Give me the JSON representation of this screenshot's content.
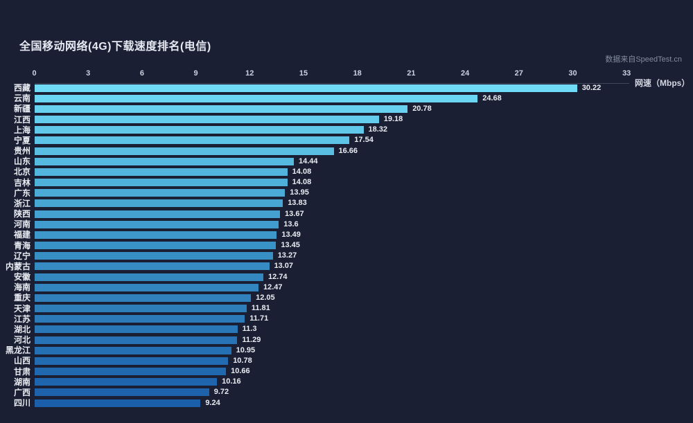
{
  "title": "全国移动网络(4G)下载速度排名(电信)",
  "credit": "数据来自SpeedTest.cn",
  "chart_data": {
    "type": "bar",
    "orientation": "horizontal",
    "title": "全国移动网络(4G)下载速度排名(电信)",
    "source_note": "数据来自SpeedTest.cn",
    "axis_label": "网速（Mbps）",
    "xlabel": "网速（Mbps）",
    "ylabel": "",
    "xlim": [
      0,
      33
    ],
    "x_ticks": [
      0,
      3,
      6,
      9,
      12,
      15,
      18,
      21,
      24,
      27,
      30,
      33
    ],
    "grid": false,
    "legend": false,
    "categories": [
      "西藏",
      "云南",
      "新疆",
      "江西",
      "上海",
      "宁夏",
      "贵州",
      "山东",
      "北京",
      "吉林",
      "广东",
      "浙江",
      "陕西",
      "河南",
      "福建",
      "青海",
      "辽宁",
      "内蒙古",
      "安徽",
      "海南",
      "重庆",
      "天津",
      "江苏",
      "湖北",
      "河北",
      "黑龙江",
      "山西",
      "甘肃",
      "湖南",
      "广西",
      "四川"
    ],
    "values": [
      30.22,
      24.68,
      20.78,
      19.18,
      18.32,
      17.54,
      16.66,
      14.44,
      14.08,
      14.08,
      13.95,
      13.83,
      13.67,
      13.6,
      13.49,
      13.45,
      13.27,
      13.07,
      12.74,
      12.47,
      12.05,
      11.81,
      11.71,
      11.3,
      11.29,
      10.95,
      10.78,
      10.66,
      10.16,
      9.72,
      9.24
    ],
    "colors": {
      "background": "#1a1f33",
      "bar_gradient_start": "#6fdbf7",
      "bar_gradient_mid": "#3a93c6",
      "bar_gradient_end": "#1b5ea9",
      "text": "#e9ecf2",
      "tick_text": "#ccd2e0",
      "credit_text": "#848ca0"
    }
  }
}
